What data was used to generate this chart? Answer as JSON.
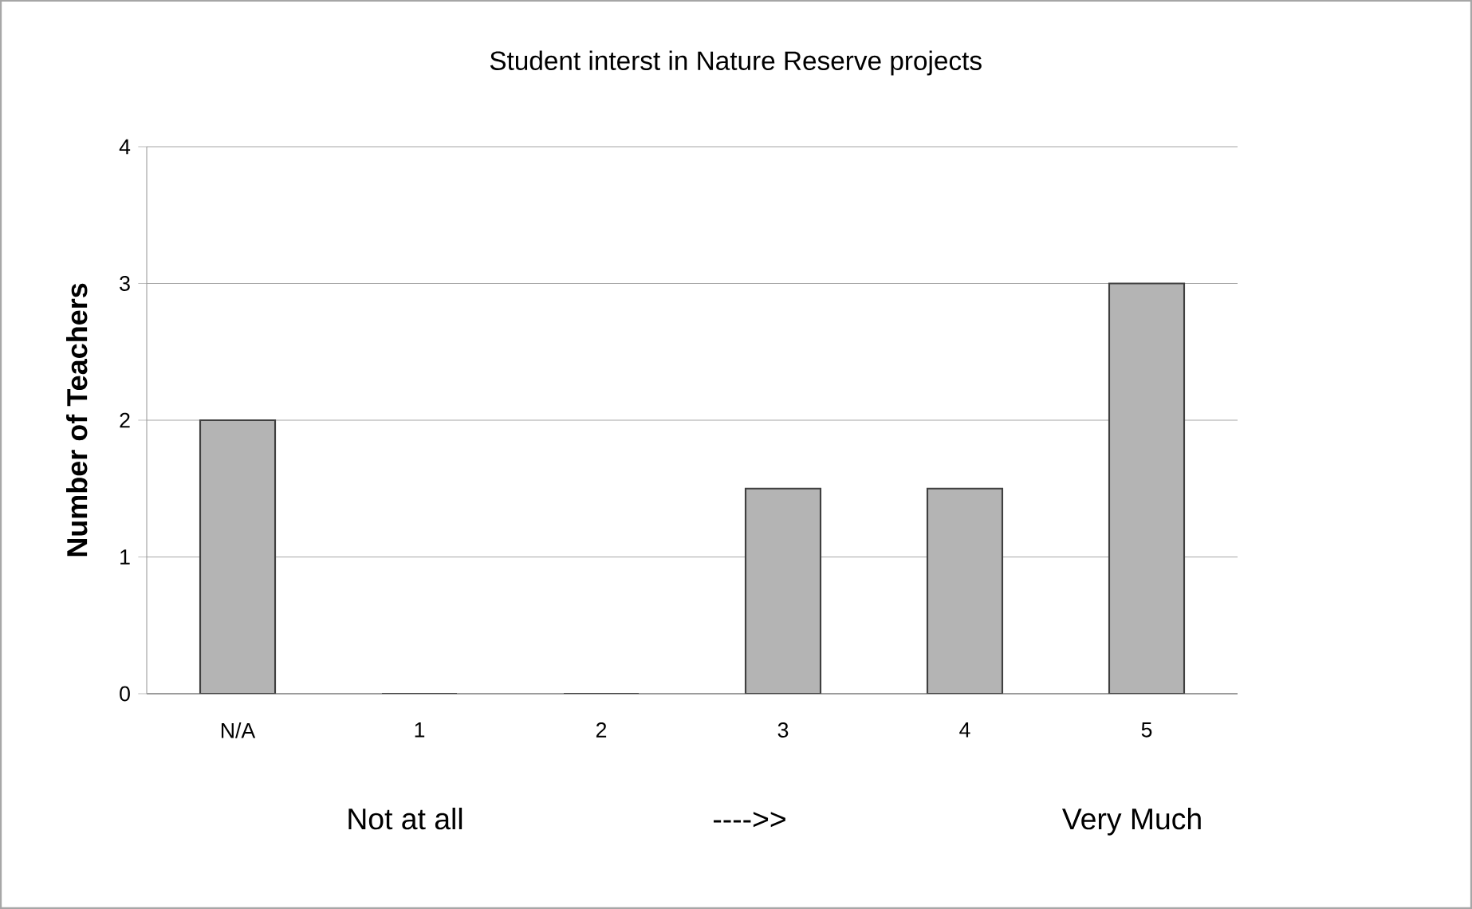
{
  "chart_data": {
    "type": "bar",
    "title": "Student interst in Nature Reserve projects",
    "ylabel": "Number of Teachers",
    "categories": [
      "N/A",
      "1",
      "2",
      "3",
      "4",
      "5"
    ],
    "values": [
      2,
      0,
      0,
      1.5,
      1.5,
      3
    ],
    "color": "#b4b4b4",
    "ylim": [
      0,
      4
    ],
    "yticks": [
      0,
      1,
      2,
      3,
      4
    ],
    "grid": "y",
    "annotations": [
      "Not at all",
      "---->>",
      "Very Much"
    ]
  }
}
